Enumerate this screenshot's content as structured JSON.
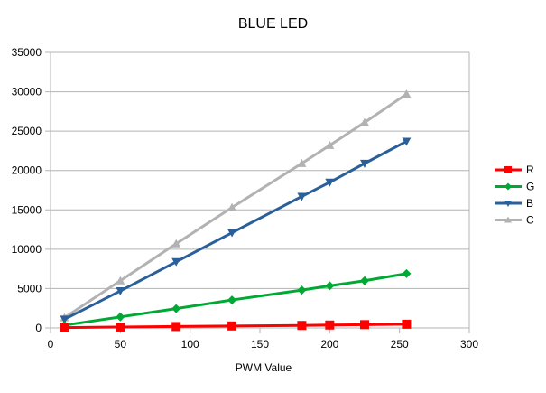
{
  "chart_data": {
    "type": "line",
    "title": "BLUE LED",
    "xlabel": "PWM Value",
    "ylabel": "",
    "xlim": [
      0,
      300
    ],
    "ylim": [
      0,
      35000
    ],
    "xticks": [
      0,
      50,
      100,
      150,
      200,
      250,
      300
    ],
    "yticks": [
      0,
      5000,
      10000,
      15000,
      20000,
      25000,
      30000,
      35000
    ],
    "grid": "horizontal",
    "legend_position": "right",
    "x": [
      10,
      50,
      90,
      130,
      180,
      200,
      225,
      255
    ],
    "series": [
      {
        "name": "R",
        "color": "#ff0000",
        "marker": "square",
        "values": [
          50,
          120,
          180,
          250,
          320,
          370,
          420,
          470
        ]
      },
      {
        "name": "G",
        "color": "#00a933",
        "marker": "diamond",
        "values": [
          350,
          1400,
          2450,
          3550,
          4800,
          5350,
          6000,
          6900
        ]
      },
      {
        "name": "B",
        "color": "#2a6099",
        "marker": "triangle-down",
        "values": [
          1100,
          4700,
          8400,
          12100,
          16700,
          18500,
          20900,
          23700
        ]
      },
      {
        "name": "C",
        "color": "#b2b2b2",
        "marker": "triangle-up",
        "values": [
          1300,
          6000,
          10700,
          15300,
          20900,
          23200,
          26100,
          29700
        ]
      }
    ]
  }
}
